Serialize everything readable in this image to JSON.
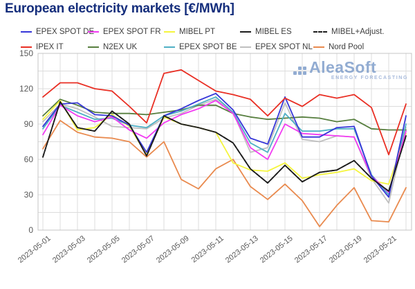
{
  "title": "European electricity markets [€/MWh]",
  "watermark": {
    "name": "AleaSoft",
    "tagline": "ENERGY FORECASTING"
  },
  "chart_data": {
    "type": "line",
    "title": "European electricity markets [€/MWh]",
    "xlabel": "",
    "ylabel": "€/MWh",
    "ylim": [
      0,
      150
    ],
    "yticks": [
      0,
      30,
      60,
      90,
      120,
      150
    ],
    "minor_grid_step_y": 15,
    "grid": "light gray, vertical line per day, horizontal every 15",
    "legend_position": "top, two rows",
    "x": [
      "2023-05-01",
      "2023-05-02",
      "2023-05-03",
      "2023-05-04",
      "2023-05-05",
      "2023-05-06",
      "2023-05-07",
      "2023-05-08",
      "2023-05-09",
      "2023-05-10",
      "2023-05-11",
      "2023-05-12",
      "2023-05-13",
      "2023-05-14",
      "2023-05-15",
      "2023-05-16",
      "2023-05-17",
      "2023-05-18",
      "2023-05-19",
      "2023-05-20",
      "2023-05-21",
      "2023-05-22"
    ],
    "x_tick_step": 2,
    "series": [
      {
        "id": "epex-spot-de",
        "name": "EPEX SPOT DE",
        "color": "#3636d8",
        "values": [
          88,
          107,
          108,
          98,
          97,
          89,
          66,
          97,
          103,
          110,
          116,
          102,
          78,
          73,
          113,
          79,
          79,
          87,
          88,
          46,
          28,
          97
        ]
      },
      {
        "id": "epex-spot-fr",
        "name": "EPEX SPOT FR",
        "color": "#f23bf2",
        "values": [
          81,
          106,
          97,
          92,
          96,
          85,
          78,
          91,
          98,
          103,
          110,
          99,
          70,
          60,
          90,
          82,
          81,
          80,
          79,
          46,
          32,
          84
        ]
      },
      {
        "id": "mibel-pt",
        "name": "MIBEL PT",
        "color": "#f5f53d",
        "values": [
          94,
          110,
          85,
          87,
          98,
          88,
          64,
          96,
          90,
          87,
          83,
          57,
          51,
          50,
          57,
          44,
          47,
          49,
          52,
          42,
          39,
          82
        ]
      },
      {
        "id": "mibel-es",
        "name": "MIBEL ES",
        "color": "#1c1c1c",
        "values": [
          62,
          109,
          87,
          84,
          101,
          90,
          63,
          97,
          90,
          87,
          83,
          74,
          52,
          40,
          55,
          41,
          49,
          51,
          59,
          44,
          33,
          80
        ]
      },
      {
        "id": "mibel-adjust",
        "name": "MIBEL+Adjust.",
        "color": "#1c1c1c",
        "dash": true,
        "values": [
          62,
          109,
          87,
          84,
          101,
          90,
          63,
          97,
          90,
          87,
          83,
          74,
          52,
          40,
          55,
          41,
          49,
          51,
          59,
          44,
          33,
          80
        ]
      },
      {
        "id": "ipex-it",
        "name": "IPEX IT",
        "color": "#e92f24",
        "values": [
          113,
          125,
          125,
          120,
          118,
          105,
          91,
          133,
          136,
          127,
          118,
          115,
          111,
          97,
          112,
          105,
          115,
          112,
          115,
          104,
          64,
          107
        ]
      },
      {
        "id": "n2ex-uk",
        "name": "N2EX UK",
        "color": "#577f3f",
        "values": [
          97,
          111,
          106,
          100,
          99,
          99,
          98,
          100,
          102,
          106,
          106,
          99,
          96,
          94,
          95,
          96,
          95,
          92,
          94,
          86,
          85,
          85
        ]
      },
      {
        "id": "epex-spot-be",
        "name": "EPEX SPOT BE",
        "color": "#4fb0c5",
        "values": [
          86,
          106,
          100,
          94,
          95,
          89,
          87,
          97,
          101,
          107,
          113,
          100,
          74,
          66,
          99,
          84,
          84,
          86,
          86,
          47,
          30,
          90
        ]
      },
      {
        "id": "epex-spot-nl",
        "name": "EPEX SPOT NL",
        "color": "#bfbfbf",
        "values": [
          92,
          107,
          103,
          96,
          88,
          87,
          86,
          95,
          99,
          106,
          111,
          100,
          66,
          70,
          108,
          77,
          75,
          80,
          79,
          44,
          23,
          87
        ]
      },
      {
        "id": "nord-pool",
        "name": "Nord Pool",
        "color": "#e98a4e",
        "values": [
          69,
          93,
          83,
          79,
          78,
          75,
          62,
          75,
          43,
          35,
          52,
          60,
          37,
          26,
          39,
          25,
          3,
          21,
          36,
          8,
          7,
          36
        ]
      }
    ],
    "draw_order": [
      4,
      8,
      6,
      7,
      9,
      2,
      1,
      0,
      3,
      5
    ],
    "legend_rows": [
      [
        0,
        1,
        2,
        3,
        4
      ],
      [
        5,
        6,
        7,
        8,
        9
      ]
    ]
  },
  "style": {
    "title_color": "#152e7c",
    "grid_color": "#dcdcdc",
    "border_color": "#c4c4c4",
    "axis_text_color": "#595959",
    "watermark_color": "#7f9ecb"
  }
}
